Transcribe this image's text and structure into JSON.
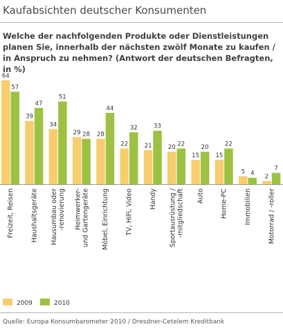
{
  "chart_data": {
    "type": "bar",
    "title": "Kaufabsichten deutscher Konsumenten",
    "subtitle": "Welche der nachfolgenden Produkte oder Dienstleistungen planen Sie, innerhalb der nächsten zwölf Monate zu kaufen / in Anspruch zu nehmen? (Antwort der deutschen Befragten, in %)",
    "categories": [
      [
        "Freizeit, Reisen"
      ],
      [
        "Haushaltsgeräte"
      ],
      [
        "Hausumbau oder",
        "-renovierung"
      ],
      [
        "Heimwerker-",
        "und Gartengeräte"
      ],
      [
        "Möbel, Einrichtung"
      ],
      [
        "TV, HiFi, Video"
      ],
      [
        "Handy"
      ],
      [
        "Sportausrüstung /",
        "-mitgliedschaft"
      ],
      [
        "Auto"
      ],
      [
        "Home-PC"
      ],
      [
        "Immobilien"
      ],
      [
        "Motorrad / -roller"
      ]
    ],
    "series": [
      {
        "name": "2009",
        "color": "#f7cd6e",
        "values": [
          64,
          39,
          34,
          29,
          28,
          22,
          21,
          20,
          15,
          15,
          5,
          2
        ]
      },
      {
        "name": "2010",
        "color": "#9dc243",
        "values": [
          57,
          47,
          51,
          28,
          44,
          32,
          33,
          22,
          20,
          22,
          4,
          7
        ]
      }
    ],
    "ylim": [
      0,
      64
    ],
    "grid": false,
    "legend": "bottom-left",
    "source": "Quelle: Europa Konsumbarometer 2010 / Dresdner-Cetelem Kreditbank"
  }
}
